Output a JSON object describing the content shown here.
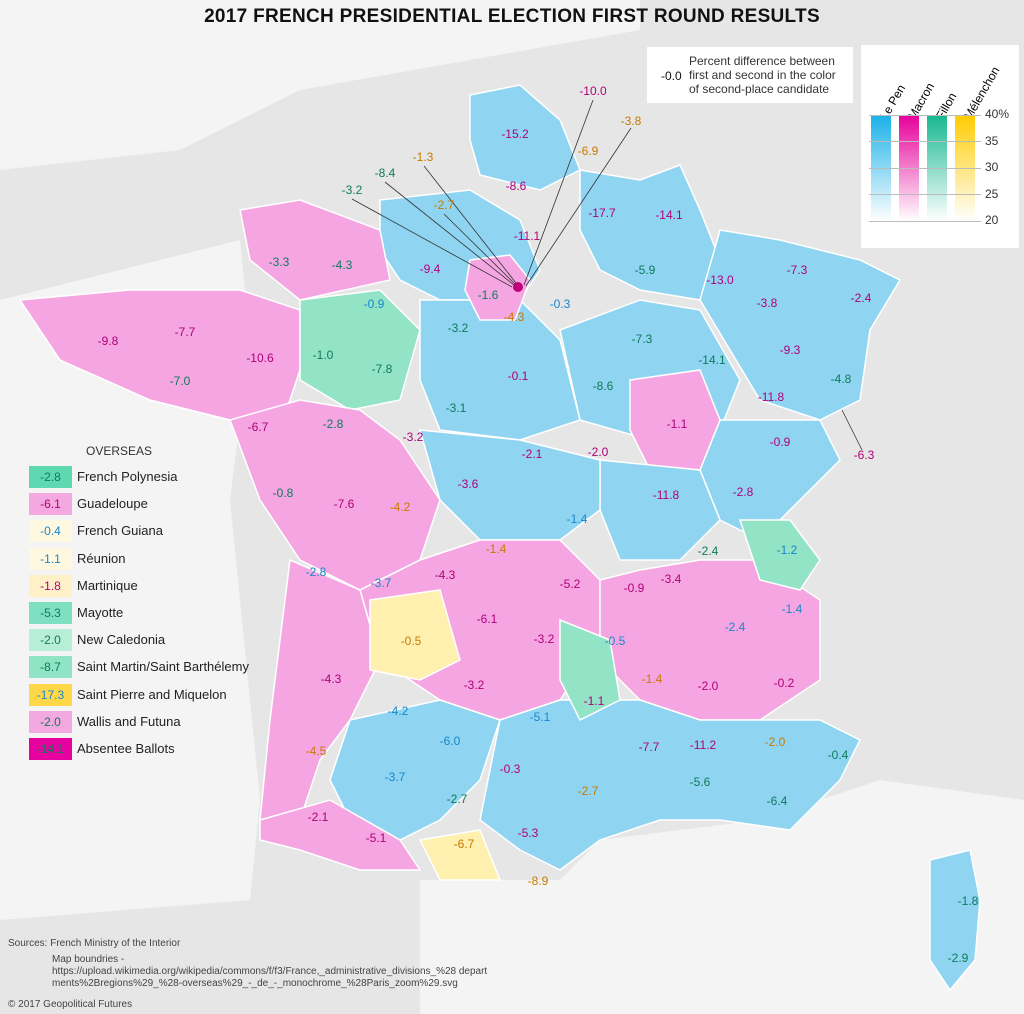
{
  "title": "2017 FRENCH PRESIDENTIAL ELECTION FIRST ROUND RESULTS",
  "key": {
    "example": "-0.0",
    "text": "Percent difference between first and second in the color of second-place candidate"
  },
  "scale": {
    "candidates": [
      {
        "name": "Le Pen",
        "color": "#1ab1e8"
      },
      {
        "name": "Macron",
        "color": "#e6009a"
      },
      {
        "name": "Fillon",
        "color": "#17b890"
      },
      {
        "name": "Mélenchon",
        "color": "#ffcc00"
      }
    ],
    "ticks": [
      "40%",
      "35",
      "30",
      "25",
      "20"
    ]
  },
  "overseas": {
    "title": "OVERSEAS",
    "items": [
      {
        "value": "-2.8",
        "name": "French Polynesia",
        "cand": "fillon",
        "color": "#5ed8b0"
      },
      {
        "value": "-6.1",
        "name": "Guadeloupe",
        "cand": "macron",
        "color": "#f4a8e0"
      },
      {
        "value": "-0.4",
        "name": "French Guiana",
        "cand": "lepen",
        "color": "#fff8e0"
      },
      {
        "value": "-1.1",
        "name": "Réunion",
        "cand": "lepen",
        "color": "#fff8e0"
      },
      {
        "value": "-1.8",
        "name": "Martinique",
        "cand": "macron",
        "color": "#fff0c8"
      },
      {
        "value": "-5.3",
        "name": "Mayotte",
        "cand": "fillon",
        "color": "#7ee0c0"
      },
      {
        "value": "-2.0",
        "name": "New Caledonia",
        "cand": "fillon",
        "color": "#b6eed8"
      },
      {
        "value": "-8.7",
        "name": "Saint Martin/Saint Barthélemy",
        "cand": "fillon",
        "color": "#8ee4c4"
      },
      {
        "value": "-17.3",
        "name": "Saint Pierre and Miquelon",
        "cand": "lepen",
        "color": "#ffd84a"
      },
      {
        "value": "-2.0",
        "name": "Wallis and Futuna",
        "cand": "fillon",
        "color": "#f4a8e0"
      },
      {
        "value": "-14.1",
        "name": "Absentee Ballots",
        "cand": "fillon",
        "color": "#e600a0"
      }
    ]
  },
  "map_labels": [
    {
      "v": "-15.2",
      "c": "macron"
    },
    {
      "v": "-6.9",
      "c": "melenchon"
    },
    {
      "v": "-10.0",
      "c": "macron"
    },
    {
      "v": "-3.8",
      "c": "melenchon"
    },
    {
      "v": "-1.3",
      "c": "melenchon"
    },
    {
      "v": "-8.4",
      "c": "fillon"
    },
    {
      "v": "-3.2",
      "c": "fillon"
    },
    {
      "v": "-2.7",
      "c": "melenchon"
    },
    {
      "v": "-8.6",
      "c": "macron"
    },
    {
      "v": "-17.7",
      "c": "macron"
    },
    {
      "v": "-14.1",
      "c": "macron"
    },
    {
      "v": "-11.1",
      "c": "macron"
    },
    {
      "v": "-9.4",
      "c": "macron"
    },
    {
      "v": "-1.6",
      "c": "fillon"
    },
    {
      "v": "-4.3",
      "c": "melenchon"
    },
    {
      "v": "-0.3",
      "c": "lepen"
    },
    {
      "v": "-5.9",
      "c": "fillon"
    },
    {
      "v": "-13.0",
      "c": "macron"
    },
    {
      "v": "-7.3",
      "c": "macron"
    },
    {
      "v": "-2.4",
      "c": "macron"
    },
    {
      "v": "-3.8",
      "c": "macron"
    },
    {
      "v": "-9.3",
      "c": "macron"
    },
    {
      "v": "-4.8",
      "c": "fillon"
    },
    {
      "v": "-14.1",
      "c": "fillon"
    },
    {
      "v": "-7.3",
      "c": "fillon"
    },
    {
      "v": "-11.8",
      "c": "macron"
    },
    {
      "v": "-6.3",
      "c": "macron"
    },
    {
      "v": "-3.3",
      "c": "fillon"
    },
    {
      "v": "-4.3",
      "c": "fillon"
    },
    {
      "v": "-0.9",
      "c": "lepen"
    },
    {
      "v": "-9.8",
      "c": "macron"
    },
    {
      "v": "-7.7",
      "c": "macron"
    },
    {
      "v": "-10.6",
      "c": "macron"
    },
    {
      "v": "-1.0",
      "c": "fillon"
    },
    {
      "v": "-7.8",
      "c": "fillon"
    },
    {
      "v": "-7.0",
      "c": "fillon"
    },
    {
      "v": "-3.2",
      "c": "fillon"
    },
    {
      "v": "-0.1",
      "c": "macron"
    },
    {
      "v": "-8.6",
      "c": "fillon"
    },
    {
      "v": "-1.1",
      "c": "macron"
    },
    {
      "v": "-0.9",
      "c": "macron"
    },
    {
      "v": "-6.7",
      "c": "macron"
    },
    {
      "v": "-2.8",
      "c": "fillon"
    },
    {
      "v": "-3.2",
      "c": "macron"
    },
    {
      "v": "-3.1",
      "c": "fillon"
    },
    {
      "v": "-2.1",
      "c": "macron"
    },
    {
      "v": "-2.0",
      "c": "macron"
    },
    {
      "v": "-0.8",
      "c": "fillon"
    },
    {
      "v": "-7.6",
      "c": "macron"
    },
    {
      "v": "-4.2",
      "c": "melenchon"
    },
    {
      "v": "-3.6",
      "c": "macron"
    },
    {
      "v": "-1.4",
      "c": "lepen"
    },
    {
      "v": "-11.8",
      "c": "macron"
    },
    {
      "v": "-2.8",
      "c": "macron"
    },
    {
      "v": "-1.4",
      "c": "melenchon"
    },
    {
      "v": "-2.4",
      "c": "fillon"
    },
    {
      "v": "-1.2",
      "c": "lepen"
    },
    {
      "v": "-4.3",
      "c": "macron"
    },
    {
      "v": "-5.2",
      "c": "macron"
    },
    {
      "v": "-0.9",
      "c": "macron"
    },
    {
      "v": "-3.4",
      "c": "macron"
    },
    {
      "v": "-1.4",
      "c": "lepen"
    },
    {
      "v": "-2.8",
      "c": "lepen"
    },
    {
      "v": "-3.7",
      "c": "lepen"
    },
    {
      "v": "-0.5",
      "c": "melenchon"
    },
    {
      "v": "-6.1",
      "c": "macron"
    },
    {
      "v": "-3.2",
      "c": "macron"
    },
    {
      "v": "-0.5",
      "c": "lepen"
    },
    {
      "v": "-2.4",
      "c": "lepen"
    },
    {
      "v": "-0.2",
      "c": "macron"
    },
    {
      "v": "-1.1",
      "c": "macron"
    },
    {
      "v": "-1.4",
      "c": "melenchon"
    },
    {
      "v": "-2.0",
      "c": "macron"
    },
    {
      "v": "-4.3",
      "c": "macron"
    },
    {
      "v": "-4.2",
      "c": "lepen"
    },
    {
      "v": "-3.2",
      "c": "macron"
    },
    {
      "v": "-5.1",
      "c": "lepen"
    },
    {
      "v": "-6.0",
      "c": "lepen"
    },
    {
      "v": "-0.3",
      "c": "macron"
    },
    {
      "v": "-7.7",
      "c": "macron"
    },
    {
      "v": "-11.2",
      "c": "macron"
    },
    {
      "v": "-2.0",
      "c": "melenchon"
    },
    {
      "v": "-0.4",
      "c": "fillon"
    },
    {
      "v": "-4.5",
      "c": "melenchon"
    },
    {
      "v": "-3.7",
      "c": "lepen"
    },
    {
      "v": "-2.7",
      "c": "melenchon"
    },
    {
      "v": "-2.7",
      "c": "fillon"
    },
    {
      "v": "-5.3",
      "c": "macron"
    },
    {
      "v": "-5.6",
      "c": "fillon"
    },
    {
      "v": "-6.4",
      "c": "fillon"
    },
    {
      "v": "-2.1",
      "c": "macron"
    },
    {
      "v": "-5.1",
      "c": "macron"
    },
    {
      "v": "-6.7",
      "c": "melenchon"
    },
    {
      "v": "-8.9",
      "c": "melenchon"
    },
    {
      "v": "-1.8",
      "c": "fillon"
    },
    {
      "v": "-2.9",
      "c": "fillon"
    }
  ],
  "sources": {
    "label": "Sources:  French Ministry of the Interior",
    "map_label": "Map boundries -",
    "map_url": "https://upload.wikimedia.org/wikipedia/commons/f/f3/France,_administrative_divisions_%28 departments%2Bregions%29_%28-overseas%29_-_de_-_monochrome_%28Paris_zoom%29.svg",
    "copyright": "© 2017 Geopolitical Futures"
  },
  "colors": {
    "lepen": "#1a86c8",
    "macron": "#b0007a",
    "fillon": "#0d7a5a",
    "melenchon": "#c77a00"
  }
}
